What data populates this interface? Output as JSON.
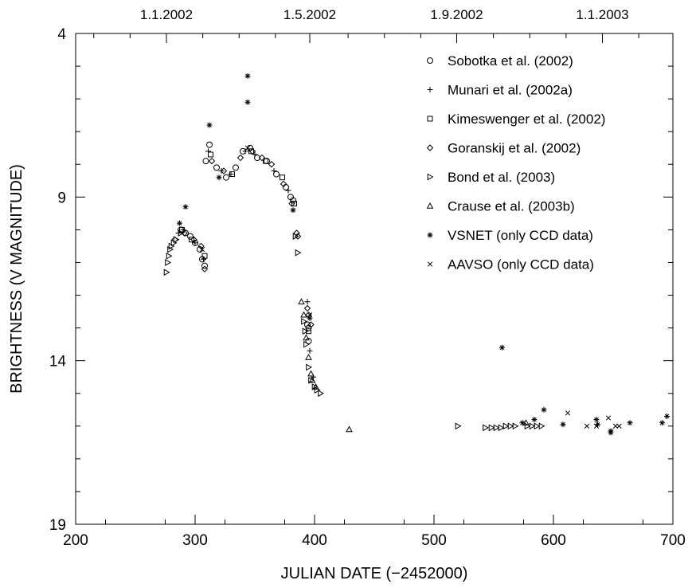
{
  "chart_data": {
    "type": "scatter",
    "xlabel": "JULIAN DATE (−2452000)",
    "ylabel": "BRIGHTNESS (V MAGNITUDE)",
    "xlim": [
      200,
      700
    ],
    "ylim": [
      19,
      4
    ],
    "y_inverted": true,
    "grid": false,
    "legend_position": "top-right",
    "x_ticks": [
      200,
      300,
      400,
      500,
      600,
      700
    ],
    "y_ticks": [
      4,
      9,
      14,
      19
    ],
    "top_axis": {
      "ticks": [
        {
          "x": 276,
          "label": "1.1.2002"
        },
        {
          "x": 396,
          "label": "1.5.2002"
        },
        {
          "x": 519,
          "label": "1.9.2002"
        },
        {
          "x": 641,
          "label": "1.1.2003"
        }
      ]
    },
    "series": [
      {
        "name": "Sobotka et al. (2002)",
        "marker": "circle",
        "points": [
          [
            288,
            10.0
          ],
          [
            292,
            10.1
          ],
          [
            296,
            10.2
          ],
          [
            300,
            10.4
          ],
          [
            304,
            10.6
          ],
          [
            306,
            10.9
          ],
          [
            308,
            11.1
          ],
          [
            309,
            7.9
          ],
          [
            312,
            7.4
          ],
          [
            318,
            8.1
          ],
          [
            326,
            8.4
          ],
          [
            334,
            8.1
          ],
          [
            340,
            7.6
          ],
          [
            346,
            7.5
          ],
          [
            352,
            7.8
          ],
          [
            360,
            7.9
          ],
          [
            368,
            8.3
          ],
          [
            376,
            8.7
          ],
          [
            380,
            9.0
          ],
          [
            382,
            9.1
          ],
          [
            394,
            12.9
          ],
          [
            395,
            13.0
          ],
          [
            395,
            13.4
          ]
        ]
      },
      {
        "name": "Munari et al. (2002a)",
        "marker": "plus",
        "points": [
          [
            286,
            10.1
          ],
          [
            290,
            10.0
          ],
          [
            300,
            10.4
          ],
          [
            307,
            10.9
          ],
          [
            311,
            7.6
          ],
          [
            322,
            8.2
          ],
          [
            330,
            8.3
          ],
          [
            342,
            7.6
          ],
          [
            350,
            7.7
          ],
          [
            366,
            8.2
          ],
          [
            378,
            8.8
          ],
          [
            394,
            12.2
          ],
          [
            396,
            13.7
          ],
          [
            399,
            14.5
          ]
        ]
      },
      {
        "name": "Kimeswenger et al. (2002)",
        "marker": "square",
        "points": [
          [
            289,
            10.0
          ],
          [
            297,
            10.3
          ],
          [
            308,
            10.8
          ],
          [
            313,
            7.7
          ],
          [
            331,
            8.3
          ],
          [
            347,
            7.6
          ],
          [
            359,
            7.9
          ],
          [
            373,
            8.4
          ],
          [
            383,
            9.2
          ],
          [
            395,
            13.1
          ]
        ]
      },
      {
        "name": "Goranskij et al. (2002)",
        "marker": "diamond",
        "points": [
          [
            283,
            10.3
          ],
          [
            291,
            10.1
          ],
          [
            299,
            10.3
          ],
          [
            305,
            10.5
          ],
          [
            308,
            11.2
          ],
          [
            314,
            7.9
          ],
          [
            324,
            8.2
          ],
          [
            338,
            7.8
          ],
          [
            348,
            7.6
          ],
          [
            356,
            7.8
          ],
          [
            364,
            8.0
          ],
          [
            374,
            8.6
          ],
          [
            381,
            9.2
          ],
          [
            385,
            10.1
          ],
          [
            386,
            10.2
          ],
          [
            394,
            12.4
          ],
          [
            395,
            12.6
          ],
          [
            397,
            12.9
          ]
        ]
      },
      {
        "name": "Bond et al. (2003)",
        "marker": "triangle-right",
        "points": [
          [
            276,
            11.3
          ],
          [
            277,
            11.0
          ],
          [
            278,
            10.8
          ],
          [
            279,
            10.6
          ],
          [
            280,
            10.5
          ],
          [
            282,
            10.4
          ],
          [
            284,
            10.3
          ],
          [
            288,
            10.1
          ],
          [
            384,
            10.2
          ],
          [
            386,
            10.7
          ],
          [
            391,
            12.8
          ],
          [
            392,
            13.1
          ],
          [
            393,
            13.5
          ],
          [
            395,
            14.2
          ],
          [
            397,
            14.6
          ],
          [
            400,
            14.8
          ],
          [
            402,
            14.9
          ],
          [
            405,
            15.0
          ],
          [
            520,
            16.0
          ],
          [
            543,
            16.05
          ],
          [
            548,
            16.05
          ],
          [
            552,
            16.05
          ],
          [
            556,
            16.05
          ],
          [
            560,
            16.0
          ],
          [
            564,
            16.0
          ],
          [
            568,
            16.0
          ],
          [
            578,
            16.0
          ],
          [
            582,
            16.0
          ],
          [
            586,
            16.0
          ],
          [
            590,
            16.0
          ]
        ]
      },
      {
        "name": "Crause et al. (2003b)",
        "marker": "triangle-up",
        "points": [
          [
            389,
            12.2
          ],
          [
            391,
            12.6
          ],
          [
            393,
            13.3
          ],
          [
            395,
            13.9
          ],
          [
            397,
            14.4
          ],
          [
            398,
            14.6
          ],
          [
            401,
            14.8
          ],
          [
            429,
            16.1
          ],
          [
            577,
            15.9
          ]
        ]
      },
      {
        "name": "VSNET (only CCD data)",
        "marker": "asterisk",
        "points": [
          [
            287,
            9.8
          ],
          [
            292,
            9.3
          ],
          [
            312,
            6.8
          ],
          [
            320,
            8.4
          ],
          [
            344,
            5.3
          ],
          [
            344,
            6.1
          ],
          [
            382,
            9.4
          ],
          [
            396,
            12.7
          ],
          [
            557,
            13.6
          ],
          [
            574,
            15.9
          ],
          [
            584,
            15.8
          ],
          [
            592,
            15.5
          ],
          [
            608,
            15.95
          ],
          [
            636,
            15.8
          ],
          [
            637,
            15.95
          ],
          [
            648,
            16.2
          ],
          [
            648,
            16.15
          ],
          [
            664,
            15.9
          ],
          [
            691,
            15.9
          ],
          [
            695,
            15.7
          ]
        ]
      },
      {
        "name": "AAVSO (only CCD data)",
        "marker": "x",
        "points": [
          [
            306,
            10.6
          ],
          [
            344,
            7.5
          ],
          [
            396,
            12.6
          ],
          [
            612,
            15.6
          ],
          [
            628,
            16.0
          ],
          [
            636,
            16.0
          ],
          [
            646,
            15.75
          ],
          [
            652,
            16.0
          ],
          [
            655,
            16.0
          ]
        ]
      }
    ]
  }
}
